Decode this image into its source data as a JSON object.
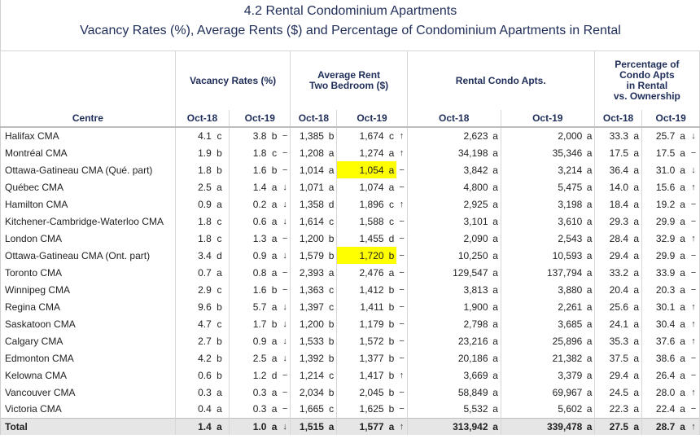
{
  "title": "4.2 Rental Condominium Apartments",
  "subtitle": "Vacancy Rates (%), Average Rents ($) and Percentage of Condominium Apartments in Rental",
  "headers": {
    "vacancy": "Vacancy Rates (%)",
    "rent_line1": "Average Rent",
    "rent_line2": "Two Bedroom ($)",
    "rental_condo": "Rental Condo Apts.",
    "pct_line1": "Percentage of",
    "pct_line2": "Condo Apts",
    "pct_line3": "in Rental",
    "pct_line4": "vs. Ownership",
    "centre": "Centre",
    "oct18": "Oct-18",
    "oct19": "Oct-19"
  },
  "rows": [
    {
      "centre": "Halifax CMA",
      "v": [
        "4.1",
        "c",
        "3.8",
        "b",
        "−",
        "1,385",
        "b",
        "1,674",
        "c",
        "↑",
        "2,623",
        "a",
        "2,000",
        "a",
        "33.3",
        "a",
        "25.7",
        "a",
        "↓"
      ]
    },
    {
      "centre": "Montréal CMA",
      "v": [
        "1.9",
        "b",
        "1.8",
        "c",
        "−",
        "1,208",
        "a",
        "1,274",
        "a",
        "↑",
        "34,198",
        "a",
        "35,346",
        "a",
        "17.5",
        "a",
        "17.5",
        "a",
        "−"
      ]
    },
    {
      "centre": "Ottawa-Gatineau CMA (Qué. part)",
      "v": [
        "1.8",
        "b",
        "1.6",
        "b",
        "−",
        "1,014",
        "a",
        "1,054",
        "a",
        "−",
        "3,842",
        "a",
        "3,214",
        "a",
        "36.4",
        "a",
        "31.0",
        "a",
        "↓"
      ],
      "hl": true
    },
    {
      "centre": "Québec CMA",
      "v": [
        "2.5",
        "a",
        "1.4",
        "a",
        "↓",
        "1,071",
        "a",
        "1,074",
        "a",
        "−",
        "4,800",
        "a",
        "5,475",
        "a",
        "14.0",
        "a",
        "15.6",
        "a",
        "↑"
      ]
    },
    {
      "centre": "Hamilton CMA",
      "v": [
        "0.9",
        "a",
        "0.2",
        "a",
        "↓",
        "1,358",
        "d",
        "1,896",
        "c",
        "↑",
        "2,925",
        "a",
        "3,198",
        "a",
        "18.4",
        "a",
        "19.2",
        "a",
        "−"
      ]
    },
    {
      "centre": "Kitchener-Cambridge-Waterloo CMA",
      "v": [
        "1.8",
        "c",
        "0.6",
        "a",
        "↓",
        "1,614",
        "c",
        "1,588",
        "c",
        "−",
        "3,101",
        "a",
        "3,610",
        "a",
        "29.3",
        "a",
        "29.9",
        "a",
        "−"
      ]
    },
    {
      "centre": "London CMA",
      "v": [
        "1.8",
        "c",
        "1.3",
        "a",
        "−",
        "1,200",
        "b",
        "1,455",
        "d",
        "−",
        "2,090",
        "a",
        "2,543",
        "a",
        "28.4",
        "a",
        "32.9",
        "a",
        "↑"
      ]
    },
    {
      "centre": "Ottawa-Gatineau CMA (Ont. part)",
      "v": [
        "3.4",
        "d",
        "0.9",
        "a",
        "↓",
        "1,579",
        "b",
        "1,720",
        "b",
        "−",
        "10,250",
        "a",
        "10,593",
        "a",
        "29.4",
        "a",
        "29.9",
        "a",
        "−"
      ],
      "hl": true
    },
    {
      "centre": "Toronto CMA",
      "v": [
        "0.7",
        "a",
        "0.8",
        "a",
        "−",
        "2,393",
        "a",
        "2,476",
        "a",
        "−",
        "129,547",
        "a",
        "137,794",
        "a",
        "33.2",
        "a",
        "33.9",
        "a",
        "−"
      ]
    },
    {
      "centre": "Winnipeg CMA",
      "v": [
        "2.9",
        "c",
        "1.6",
        "b",
        "−",
        "1,363",
        "c",
        "1,412",
        "b",
        "−",
        "3,813",
        "a",
        "3,880",
        "a",
        "20.4",
        "a",
        "20.3",
        "a",
        "−"
      ]
    },
    {
      "centre": "Regina CMA",
      "v": [
        "9.6",
        "b",
        "5.7",
        "a",
        "↓",
        "1,397",
        "c",
        "1,411",
        "b",
        "−",
        "1,900",
        "a",
        "2,261",
        "a",
        "25.6",
        "a",
        "30.1",
        "a",
        "↑"
      ]
    },
    {
      "centre": "Saskatoon CMA",
      "v": [
        "4.7",
        "c",
        "1.7",
        "b",
        "↓",
        "1,200",
        "b",
        "1,179",
        "b",
        "−",
        "2,798",
        "a",
        "3,685",
        "a",
        "24.1",
        "a",
        "30.4",
        "a",
        "↑"
      ]
    },
    {
      "centre": "Calgary CMA",
      "v": [
        "2.7",
        "b",
        "0.9",
        "a",
        "↓",
        "1,533",
        "b",
        "1,572",
        "b",
        "−",
        "23,216",
        "a",
        "25,896",
        "a",
        "35.3",
        "a",
        "37.6",
        "a",
        "↑"
      ]
    },
    {
      "centre": "Edmonton CMA",
      "v": [
        "4.2",
        "b",
        "2.5",
        "a",
        "↓",
        "1,392",
        "b",
        "1,377",
        "b",
        "−",
        "20,186",
        "a",
        "21,382",
        "a",
        "37.5",
        "a",
        "38.6",
        "a",
        "−"
      ]
    },
    {
      "centre": "Kelowna CMA",
      "v": [
        "0.6",
        "b",
        "1.2",
        "d",
        "−",
        "1,214",
        "c",
        "1,417",
        "b",
        "↑",
        "3,669",
        "a",
        "3,379",
        "a",
        "29.4",
        "a",
        "26.4",
        "a",
        "−"
      ]
    },
    {
      "centre": "Vancouver CMA",
      "v": [
        "0.3",
        "a",
        "0.3",
        "a",
        "−",
        "2,034",
        "b",
        "2,045",
        "b",
        "−",
        "58,849",
        "a",
        "69,967",
        "a",
        "24.5",
        "a",
        "28.0",
        "a",
        "↑"
      ]
    },
    {
      "centre": "Victoria CMA",
      "v": [
        "0.4",
        "a",
        "0.3",
        "a",
        "−",
        "1,665",
        "c",
        "1,625",
        "b",
        "−",
        "5,532",
        "a",
        "5,602",
        "a",
        "22.3",
        "a",
        "22.4",
        "a",
        "−"
      ]
    }
  ],
  "total": {
    "centre": "Total",
    "v": [
      "1.4",
      "a",
      "1.0",
      "a",
      "↓",
      "1,515",
      "a",
      "1,577",
      "a",
      "↑",
      "313,942",
      "a",
      "339,478",
      "a",
      "27.5",
      "a",
      "28.7",
      "a",
      "↑"
    ]
  },
  "highlight_color": "#ffff00"
}
